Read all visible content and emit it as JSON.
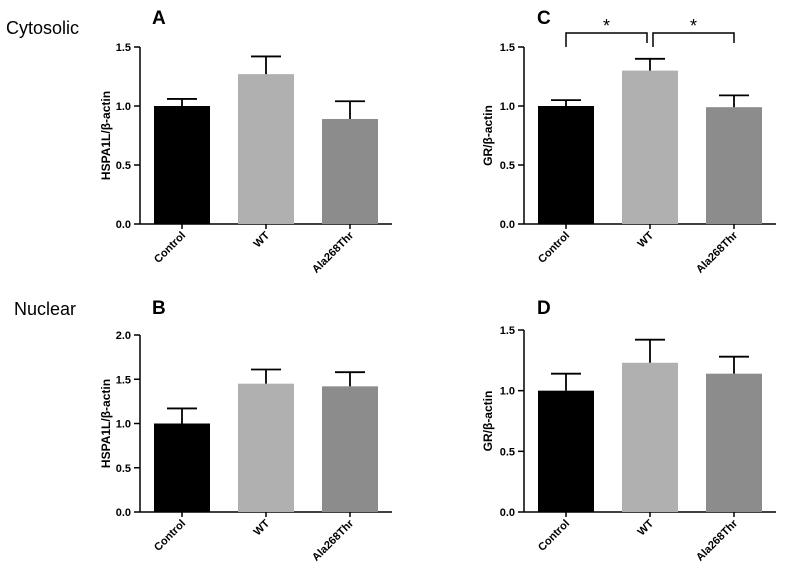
{
  "figure": {
    "row_labels": [
      "Cytosolic",
      "Nuclear"
    ]
  },
  "chart_data": [
    {
      "panel": "A",
      "type": "bar",
      "categories": [
        "Control",
        "WT",
        "Ala268Thr"
      ],
      "values": [
        1.0,
        1.27,
        0.89
      ],
      "errors": [
        0.06,
        0.15,
        0.15
      ],
      "colors": [
        "#000000",
        "#b0b0b0",
        "#8c8c8c"
      ],
      "ylabel": "HSPA1L/β-actin",
      "ylim": [
        0,
        1.5
      ],
      "yticks": [
        "0.0",
        "0.5",
        "1.0",
        "1.5"
      ],
      "significance": []
    },
    {
      "panel": "C",
      "type": "bar",
      "categories": [
        "Control",
        "WT",
        "Ala268Thr"
      ],
      "values": [
        1.0,
        1.3,
        0.99
      ],
      "errors": [
        0.05,
        0.1,
        0.1
      ],
      "colors": [
        "#000000",
        "#b0b0b0",
        "#8c8c8c"
      ],
      "ylabel": "GR/β-actin",
      "ylim": [
        0,
        1.5
      ],
      "yticks": [
        "0.0",
        "0.5",
        "1.0",
        "1.5"
      ],
      "significance": [
        {
          "from": 0,
          "to": 1,
          "label": "*"
        },
        {
          "from": 1,
          "to": 2,
          "label": "*"
        }
      ]
    },
    {
      "panel": "B",
      "type": "bar",
      "categories": [
        "Control",
        "WT",
        "Ala268Thr"
      ],
      "values": [
        1.0,
        1.45,
        1.42
      ],
      "errors": [
        0.17,
        0.16,
        0.16
      ],
      "colors": [
        "#000000",
        "#b0b0b0",
        "#8c8c8c"
      ],
      "ylabel": "HSPA1L/β-actin",
      "ylim": [
        0,
        2.0
      ],
      "yticks": [
        "0.0",
        "0.5",
        "1.0",
        "1.5",
        "2.0"
      ],
      "significance": []
    },
    {
      "panel": "D",
      "type": "bar",
      "categories": [
        "Control",
        "WT",
        "Ala268Thr"
      ],
      "values": [
        1.0,
        1.23,
        1.14
      ],
      "errors": [
        0.14,
        0.19,
        0.14
      ],
      "colors": [
        "#000000",
        "#b0b0b0",
        "#8c8c8c"
      ],
      "ylabel": "GR/β-actin",
      "ylim": [
        0,
        1.5
      ],
      "yticks": [
        "0.0",
        "0.5",
        "1.0",
        "1.5"
      ],
      "significance": []
    }
  ]
}
